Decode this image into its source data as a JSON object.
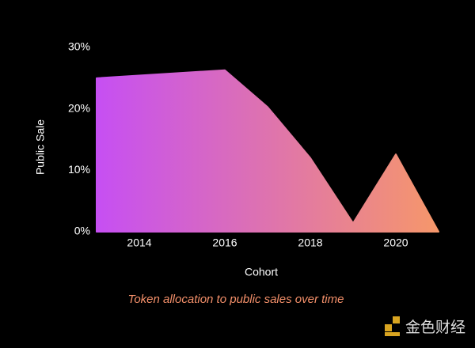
{
  "chart_data": {
    "type": "area",
    "x_label": "Cohort",
    "y_label": "Public Sale",
    "caption": "Token allocation to public sales over time",
    "watermark": "金色财经",
    "x": [
      2013,
      2016,
      2017,
      2018,
      2019,
      2020,
      2021
    ],
    "values": [
      25,
      26.3,
      20.3,
      12,
      1.4,
      12.6,
      0
    ],
    "gradient": [
      "#c64ff3",
      "#f6976a"
    ],
    "xlim": [
      2013,
      2021
    ],
    "xticks": [
      2014,
      2016,
      2018,
      2020
    ],
    "ylim": [
      0,
      30
    ],
    "yticks": [
      {
        "value": 0,
        "label": "0%"
      },
      {
        "value": 10,
        "label": "10%"
      },
      {
        "value": 20,
        "label": "20%"
      },
      {
        "value": 30,
        "label": "30%"
      }
    ]
  }
}
